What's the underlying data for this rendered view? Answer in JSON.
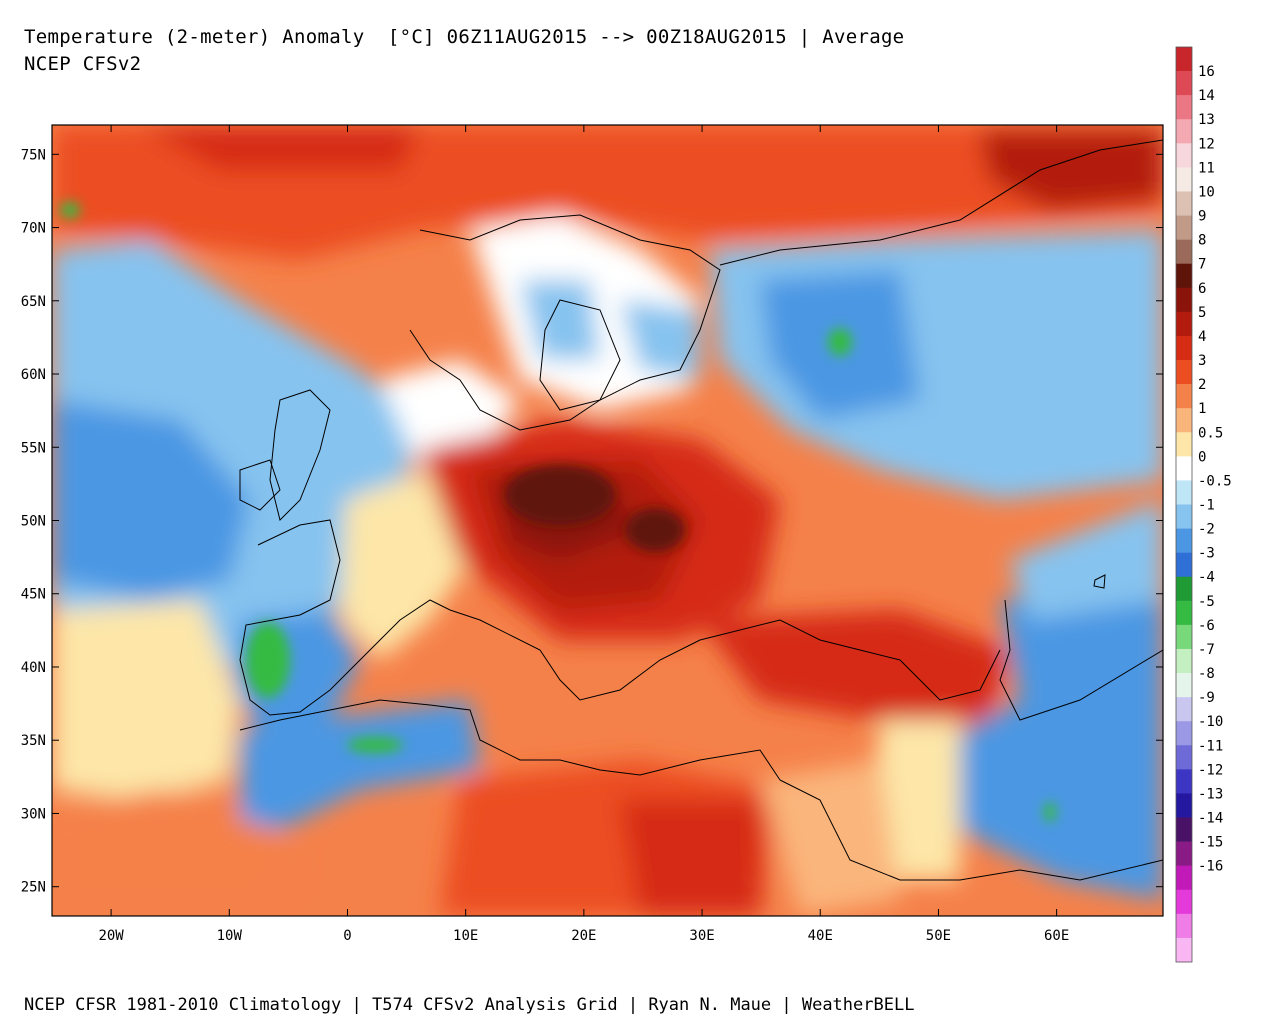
{
  "header": {
    "title": "Temperature (2-meter) Anomaly  [°C] 06Z11AUG2015 --> 00Z18AUG2015 | Average",
    "subtitle": "NCEP CFSv2"
  },
  "footer": "NCEP CFSR 1981-2010 Climatology | T574 CFSv2 Analysis Grid | Ryan N. Maue | WeatherBELL",
  "map": {
    "lon_range": [
      -25,
      69
    ],
    "lat_range": [
      23,
      77
    ],
    "lat_ticks": [
      {
        "value": 75,
        "label": "75N"
      },
      {
        "value": 70,
        "label": "70N"
      },
      {
        "value": 65,
        "label": "65N"
      },
      {
        "value": 60,
        "label": "60N"
      },
      {
        "value": 55,
        "label": "55N"
      },
      {
        "value": 50,
        "label": "50N"
      },
      {
        "value": 45,
        "label": "45N"
      },
      {
        "value": 40,
        "label": "40N"
      },
      {
        "value": 35,
        "label": "35N"
      },
      {
        "value": 30,
        "label": "30N"
      },
      {
        "value": 25,
        "label": "25N"
      }
    ],
    "lon_ticks": [
      {
        "value": -20,
        "label": "20W"
      },
      {
        "value": -10,
        "label": "10W"
      },
      {
        "value": 0,
        "label": "0"
      },
      {
        "value": 10,
        "label": "10E"
      },
      {
        "value": 20,
        "label": "20E"
      },
      {
        "value": 30,
        "label": "30E"
      },
      {
        "value": 40,
        "label": "40E"
      },
      {
        "value": 50,
        "label": "50E"
      },
      {
        "value": 60,
        "label": "60E"
      }
    ]
  },
  "colorbar": {
    "levels": [
      {
        "label": "16",
        "color": "#c8262a"
      },
      {
        "label": "14",
        "color": "#dd4a55"
      },
      {
        "label": "13",
        "color": "#ea7783"
      },
      {
        "label": "12",
        "color": "#f4a8b2"
      },
      {
        "label": "11",
        "color": "#f7d6dc"
      },
      {
        "label": "10",
        "color": "#f5ebe4"
      },
      {
        "label": "9",
        "color": "#dcc1b2"
      },
      {
        "label": "8",
        "color": "#c19a88"
      },
      {
        "label": "7",
        "color": "#9b6a5a"
      },
      {
        "label": "6",
        "color": "#5e1408"
      },
      {
        "label": "5",
        "color": "#8a140a"
      },
      {
        "label": "4",
        "color": "#b31b0e"
      },
      {
        "label": "3",
        "color": "#d62c13"
      },
      {
        "label": "2",
        "color": "#ec4e22"
      },
      {
        "label": "1",
        "color": "#f5814a"
      },
      {
        "label": "0.5",
        "color": "#fab57c"
      },
      {
        "label": "0",
        "color": "#fde6a8"
      },
      {
        "label": "-0.5",
        "color": "#ffffff"
      },
      {
        "label": "-1",
        "color": "#bfe6f6"
      },
      {
        "label": "-2",
        "color": "#86c3ef"
      },
      {
        "label": "-3",
        "color": "#4c97e3"
      },
      {
        "label": "-4",
        "color": "#2f6fd6"
      },
      {
        "label": "-5",
        "color": "#1f9a35"
      },
      {
        "label": "-6",
        "color": "#36bb42"
      },
      {
        "label": "-7",
        "color": "#79d87a"
      },
      {
        "label": "-8",
        "color": "#c4efc0"
      },
      {
        "label": "-9",
        "color": "#e6f5ec"
      },
      {
        "label": "-10",
        "color": "#c9c7f0"
      },
      {
        "label": "-11",
        "color": "#9b98e6"
      },
      {
        "label": "-12",
        "color": "#6e6ad8"
      },
      {
        "label": "-13",
        "color": "#3d36c4"
      },
      {
        "label": "-14",
        "color": "#2518a0"
      },
      {
        "label": "-15",
        "color": "#4a1266"
      },
      {
        "label": "-16",
        "color": "#8a1a86"
      },
      {
        "label": "",
        "color": "#c21ab8"
      },
      {
        "label": "",
        "color": "#e43ad9"
      },
      {
        "label": "",
        "color": "#f07ce8"
      },
      {
        "label": "",
        "color": "#f8b6f2"
      }
    ]
  }
}
